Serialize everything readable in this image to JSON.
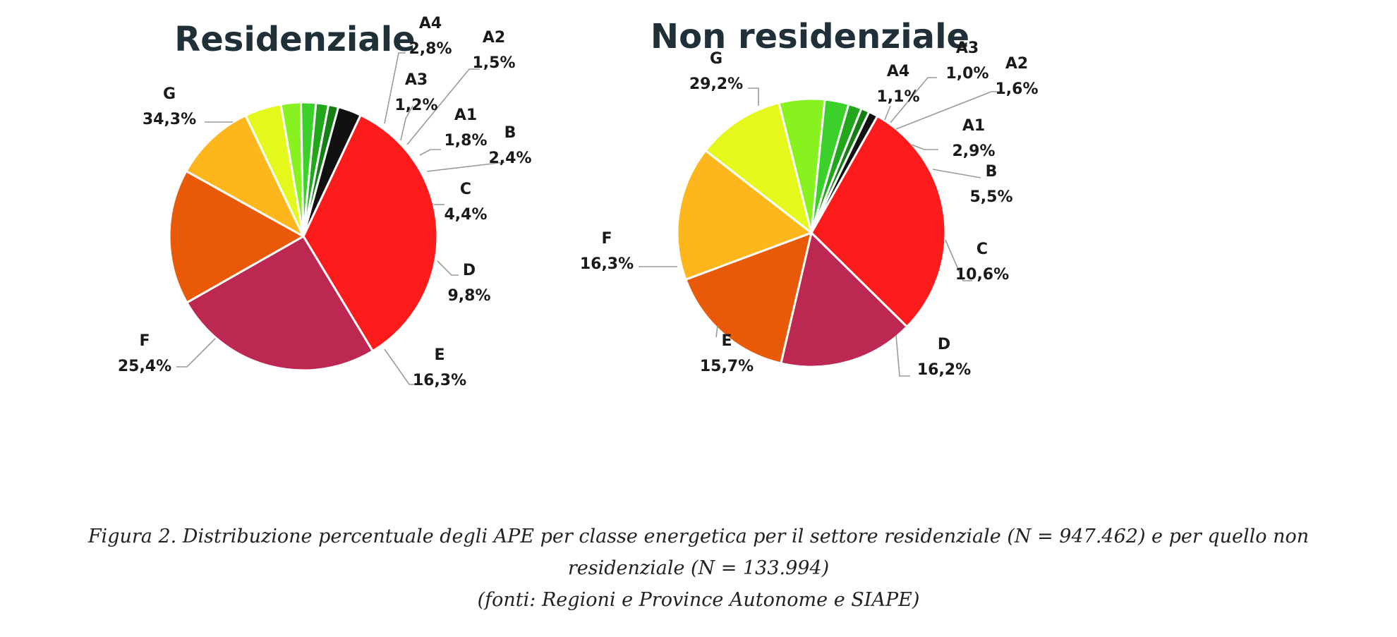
{
  "chart_data": [
    {
      "type": "pie",
      "title": "Residenziale",
      "slices": [
        {
          "label": "G",
          "value": 34.3,
          "value_label": "34,3%",
          "color": "#fe1b1b"
        },
        {
          "label": "F",
          "value": 25.4,
          "value_label": "25,4%",
          "color": "#bc2851"
        },
        {
          "label": "E",
          "value": 16.3,
          "value_label": "16,3%",
          "color": "#e95a08"
        },
        {
          "label": "D",
          "value": 9.8,
          "value_label": "9,8%",
          "color": "#fdb61b"
        },
        {
          "label": "C",
          "value": 4.4,
          "value_label": "4,4%",
          "color": "#e5f81c"
        },
        {
          "label": "B",
          "value": 2.4,
          "value_label": "2,4%",
          "color": "#88f220"
        },
        {
          "label": "A1",
          "value": 1.8,
          "value_label": "1,8%",
          "color": "#3cd02a"
        },
        {
          "label": "A2",
          "value": 1.5,
          "value_label": "1,5%",
          "color": "#22a61c"
        },
        {
          "label": "A3",
          "value": 1.2,
          "value_label": "1,2%",
          "color": "#157f16"
        },
        {
          "label": "A4",
          "value": 2.8,
          "value_label": "2,8%",
          "color": "#111111"
        }
      ]
    },
    {
      "type": "pie",
      "title": "Non residenziale",
      "slices": [
        {
          "label": "G",
          "value": 29.2,
          "value_label": "29,2%",
          "color": "#fe1b1b"
        },
        {
          "label": "F",
          "value": 16.3,
          "value_label": "16,3%",
          "color": "#bc2851"
        },
        {
          "label": "E",
          "value": 15.7,
          "value_label": "15,7%",
          "color": "#e95a08"
        },
        {
          "label": "D",
          "value": 16.2,
          "value_label": "16,2%",
          "color": "#fdb61b"
        },
        {
          "label": "C",
          "value": 10.6,
          "value_label": "10,6%",
          "color": "#e5f81c"
        },
        {
          "label": "B",
          "value": 5.5,
          "value_label": "5,5%",
          "color": "#88f220"
        },
        {
          "label": "A1",
          "value": 2.9,
          "value_label": "2,9%",
          "color": "#3cd02a"
        },
        {
          "label": "A2",
          "value": 1.6,
          "value_label": "1,6%",
          "color": "#22a61c"
        },
        {
          "label": "A3",
          "value": 1.0,
          "value_label": "1,0%",
          "color": "#157f16"
        },
        {
          "label": "A4",
          "value": 1.1,
          "value_label": "1,1%",
          "color": "#111111"
        }
      ]
    }
  ],
  "caption": {
    "line1": "Figura 2. Distribuzione percentuale degli APE per classe energetica per il settore residenziale (N = 947.462) e per quello non",
    "line2": "residenziale (N = 133.994)",
    "line3": "(fonti: Regioni e Province Autonome e SIAPE)"
  }
}
